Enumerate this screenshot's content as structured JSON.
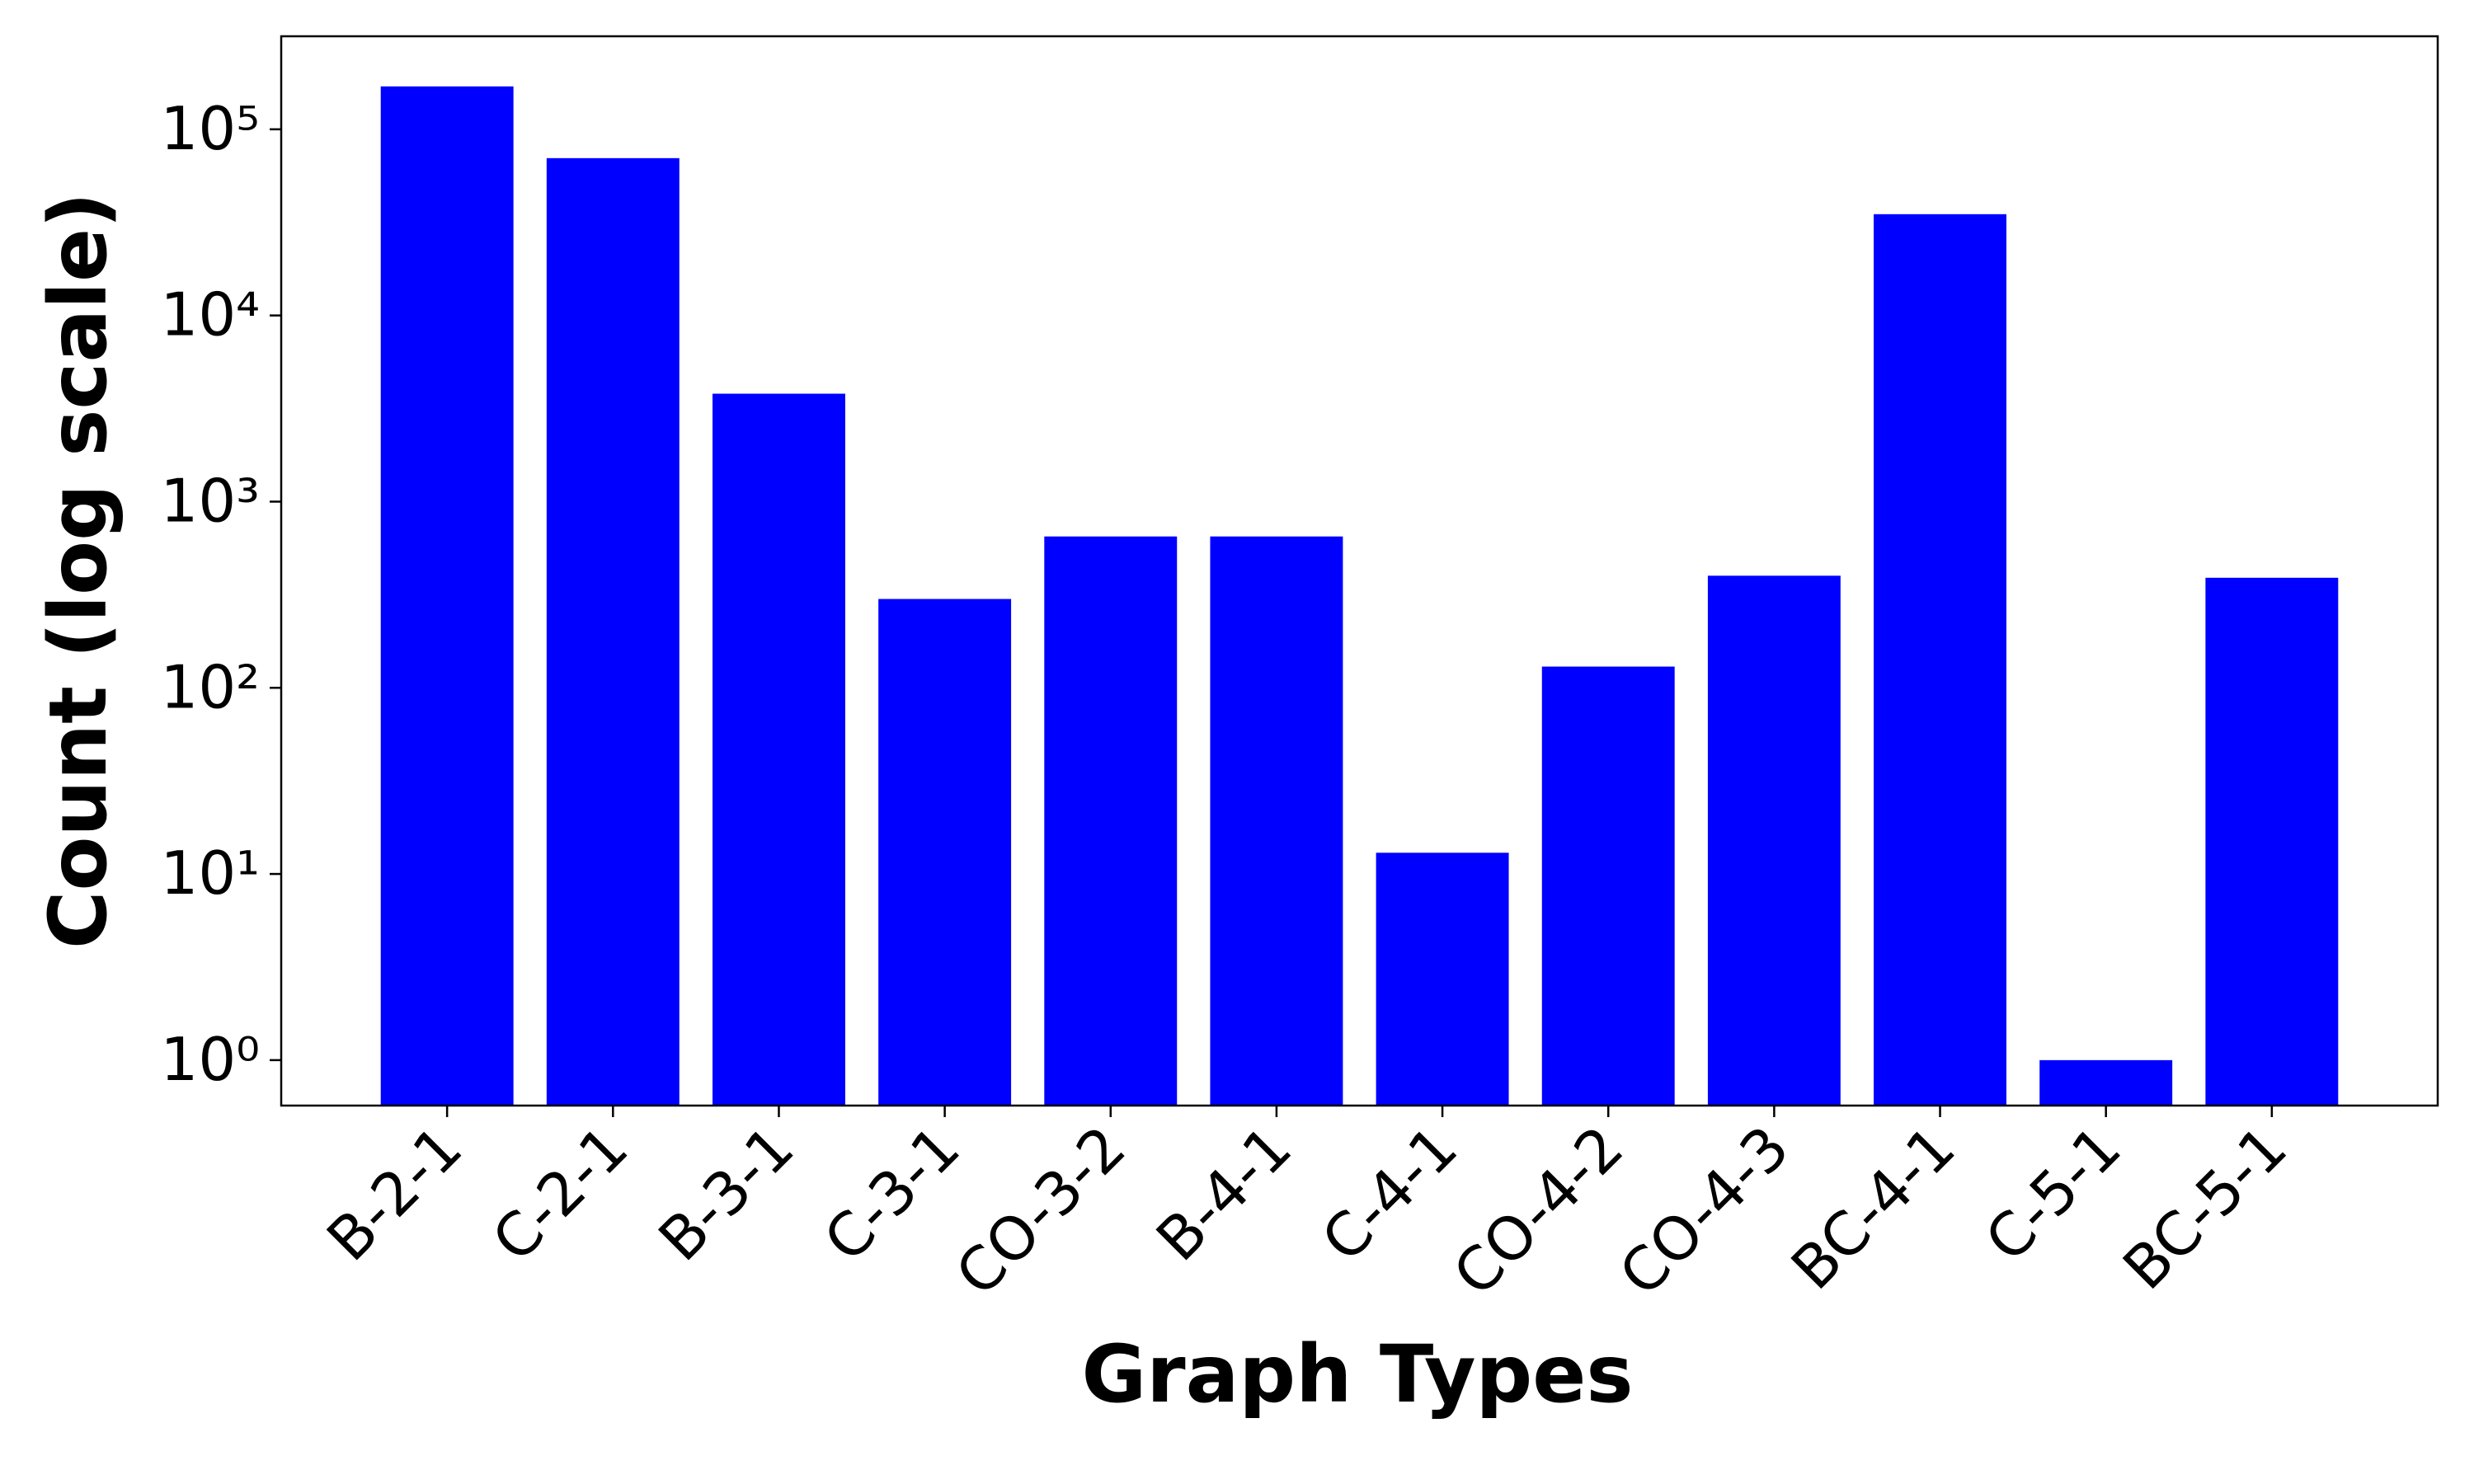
{
  "chart_data": {
    "type": "bar",
    "xlabel": "Graph Types",
    "ylabel": "Count (log scale)",
    "categories": [
      "B-2-1",
      "C-2-1",
      "B-3-1",
      "C-3-1",
      "CO-3-2",
      "B-4-1",
      "C-4-1",
      "CO-4-2",
      "CO-4-3",
      "BC-4-1",
      "C-5-1",
      "BC-5-1"
    ],
    "values": [
      170000,
      70000,
      3800,
      300,
      650,
      650,
      13,
      130,
      400,
      35000,
      1,
      390
    ],
    "color": "#0000ff",
    "yscale": "log",
    "ylim": [
      0.57,
      316000
    ],
    "yticks": [
      {
        "value": 1,
        "label": "10⁰"
      },
      {
        "value": 10,
        "label": "10¹"
      },
      {
        "value": 100,
        "label": "10²"
      },
      {
        "value": 1000,
        "label": "10³"
      },
      {
        "value": 10000,
        "label": "10⁴"
      },
      {
        "value": 100000,
        "label": "10⁵"
      }
    ],
    "grid": false
  }
}
